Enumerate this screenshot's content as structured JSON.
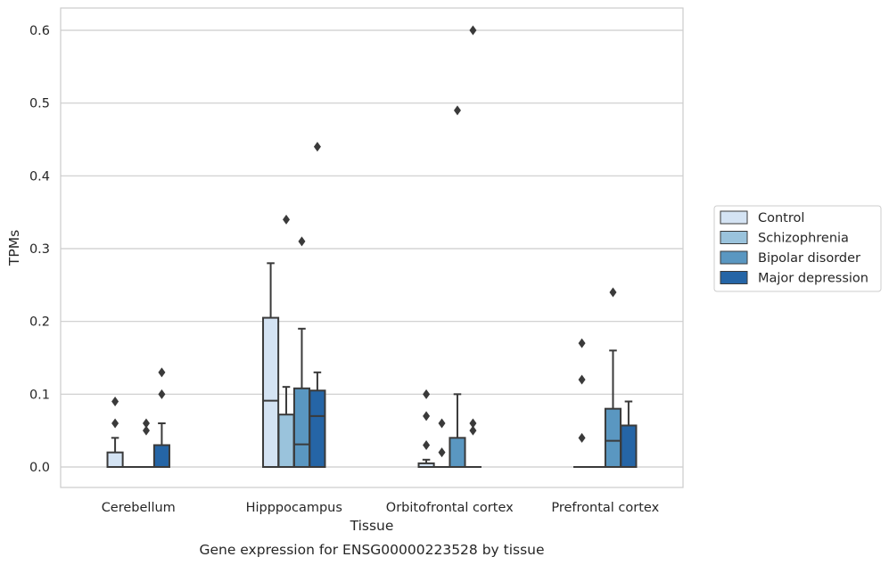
{
  "chart_data": {
    "type": "box",
    "xlabel": "Tissue",
    "ylabel": "TPMs",
    "caption": "Gene expression for ENSG00000223528 by tissue",
    "ylim": [
      -0.03,
      0.63
    ],
    "yticks": [
      0.0,
      0.1,
      0.2,
      0.3,
      0.4,
      0.5,
      0.6
    ],
    "ytick_labels": [
      "0.0",
      "0.1",
      "0.2",
      "0.3",
      "0.4",
      "0.5",
      "0.6"
    ],
    "grid": "horizontal",
    "legend_position": "right",
    "categories": [
      "Cerebellum",
      "Hipppocampus",
      "Orbitofrontal cortex",
      "Prefrontal cortex"
    ],
    "series": [
      {
        "name": "Control",
        "color": "#d4e3f3",
        "boxes": [
          {
            "q1": 0.0,
            "median": 0.0,
            "q3": 0.02,
            "whisker_low": 0.0,
            "whisker_high": 0.04,
            "outliers": [
              0.06,
              0.09
            ]
          },
          {
            "q1": 0.0,
            "median": 0.091,
            "q3": 0.205,
            "whisker_low": 0.0,
            "whisker_high": 0.28,
            "outliers": []
          },
          {
            "q1": 0.0,
            "median": 0.0,
            "q3": 0.005,
            "whisker_low": 0.0,
            "whisker_high": 0.01,
            "outliers": [
              0.03,
              0.07,
              0.1
            ]
          },
          {
            "q1": 0.0,
            "median": 0.0,
            "q3": 0.0,
            "whisker_low": 0.0,
            "whisker_high": 0.0,
            "outliers": [
              0.04,
              0.12,
              0.17
            ]
          }
        ]
      },
      {
        "name": "Schizophrenia",
        "color": "#9ac3dc",
        "boxes": [
          {
            "q1": 0.0,
            "median": 0.0,
            "q3": 0.0,
            "whisker_low": 0.0,
            "whisker_high": 0.0,
            "outliers": []
          },
          {
            "q1": 0.0,
            "median": 0.0,
            "q3": 0.072,
            "whisker_low": 0.0,
            "whisker_high": 0.11,
            "outliers": [
              0.34
            ]
          },
          {
            "q1": 0.0,
            "median": 0.0,
            "q3": 0.0,
            "whisker_low": 0.0,
            "whisker_high": 0.0,
            "outliers": [
              0.02,
              0.06
            ]
          },
          {
            "q1": 0.0,
            "median": 0.0,
            "q3": 0.0,
            "whisker_low": 0.0,
            "whisker_high": 0.0,
            "outliers": []
          }
        ]
      },
      {
        "name": "Bipolar disorder",
        "color": "#5a97c1",
        "boxes": [
          {
            "q1": 0.0,
            "median": 0.0,
            "q3": 0.0,
            "whisker_low": 0.0,
            "whisker_high": 0.0,
            "outliers": [
              0.05,
              0.06
            ]
          },
          {
            "q1": 0.0,
            "median": 0.031,
            "q3": 0.108,
            "whisker_low": 0.0,
            "whisker_high": 0.19,
            "outliers": [
              0.31
            ]
          },
          {
            "q1": 0.0,
            "median": 0.0,
            "q3": 0.04,
            "whisker_low": 0.0,
            "whisker_high": 0.1,
            "outliers": [
              0.49
            ]
          },
          {
            "q1": 0.0,
            "median": 0.036,
            "q3": 0.08,
            "whisker_low": 0.0,
            "whisker_high": 0.16,
            "outliers": [
              0.24
            ]
          }
        ]
      },
      {
        "name": "Major depression",
        "color": "#2565a6",
        "boxes": [
          {
            "q1": 0.0,
            "median": 0.0,
            "q3": 0.03,
            "whisker_low": 0.0,
            "whisker_high": 0.06,
            "outliers": [
              0.1,
              0.13
            ]
          },
          {
            "q1": 0.0,
            "median": 0.07,
            "q3": 0.105,
            "whisker_low": 0.0,
            "whisker_high": 0.13,
            "outliers": [
              0.44
            ]
          },
          {
            "q1": 0.0,
            "median": 0.0,
            "q3": 0.0,
            "whisker_low": 0.0,
            "whisker_high": 0.0,
            "outliers": [
              0.05,
              0.06,
              0.6
            ]
          },
          {
            "q1": 0.0,
            "median": 0.0,
            "q3": 0.057,
            "whisker_low": 0.0,
            "whisker_high": 0.09,
            "outliers": []
          }
        ]
      }
    ]
  }
}
